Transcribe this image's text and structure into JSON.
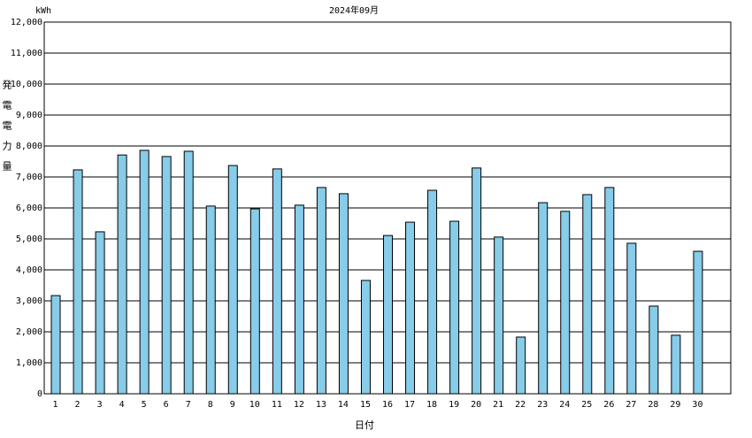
{
  "chart_data": {
    "type": "bar",
    "title": "2024年09月",
    "unit_label": "kWh",
    "y_label": "発電電力量",
    "x_label": "日付",
    "categories": [
      "1",
      "2",
      "3",
      "4",
      "5",
      "6",
      "7",
      "8",
      "9",
      "10",
      "11",
      "12",
      "13",
      "14",
      "15",
      "16",
      "17",
      "18",
      "19",
      "20",
      "21",
      "22",
      "23",
      "24",
      "25",
      "26",
      "27",
      "28",
      "29",
      "30"
    ],
    "values": [
      3170,
      7230,
      5230,
      7710,
      7860,
      7660,
      7830,
      6060,
      7370,
      5970,
      7260,
      6090,
      6660,
      6460,
      3660,
      5110,
      5540,
      6570,
      5570,
      7290,
      5060,
      1830,
      6170,
      5890,
      6430,
      6660,
      4860,
      2830,
      1890,
      4600
    ],
    "color": "#87cce8",
    "ylim": [
      0,
      12000
    ],
    "yticks": [
      0,
      {
        "value": 1000,
        "label": "1,000"
      },
      {
        "value": 2000,
        "label": "2,000"
      },
      {
        "value": 3000,
        "label": "3,000"
      },
      {
        "value": 4000,
        "label": "4,000"
      },
      {
        "value": 5000,
        "label": "5,000"
      },
      {
        "value": 6000,
        "label": "6,000"
      },
      {
        "value": 7000,
        "label": "7,000"
      },
      {
        "value": 8000,
        "label": "8,000"
      },
      {
        "value": 9000,
        "label": "9,000"
      },
      {
        "value": 10000,
        "label": "10,000"
      },
      {
        "value": 11000,
        "label": "11,000"
      },
      {
        "value": 12000,
        "label": "12,000"
      }
    ],
    "grid": true
  }
}
